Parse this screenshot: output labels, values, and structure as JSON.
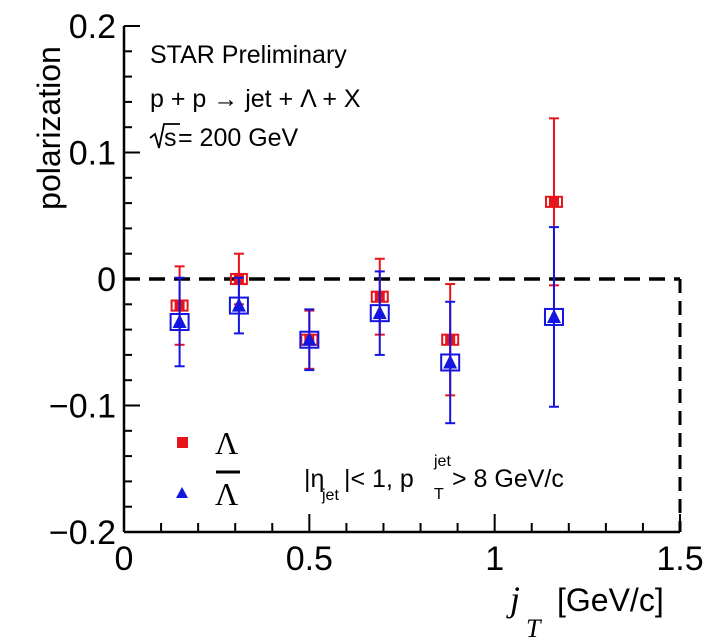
{
  "chart_data": {
    "type": "scatter",
    "xlabel_main": "j",
    "xlabel_sub": "T",
    "xlabel_unit": "[GeV/c]",
    "ylabel": "polarization",
    "xlim": [
      0,
      1.5
    ],
    "ylim": [
      -0.2,
      0.2
    ],
    "x_ticks": [
      "0",
      "0.5",
      "1",
      "1.5"
    ],
    "y_ticks": [
      "0.2",
      "0.1",
      "0",
      "−0.1",
      "−0.2"
    ],
    "reference_line": 0,
    "grid": false,
    "annotations": {
      "experiment": "STAR Preliminary",
      "process": "p + p → jet + Λ + X",
      "energy_sqrt": "s",
      "energy_rest": " = 200 GeV",
      "cuts_eta": "|η",
      "cuts_eta_sub": "jet",
      "cuts_mid": "|< 1, p",
      "cuts_p_sup": "jet",
      "cuts_p_sub": "T",
      "cuts_end": " > 8 GeV/c"
    },
    "legend_position": "bottom-left",
    "series": [
      {
        "name": "Λ",
        "color": "#e8141b",
        "marker": "square",
        "x": [
          0.15,
          0.31,
          0.5,
          0.69,
          0.88,
          1.16
        ],
        "y": [
          -0.021,
          0.0,
          -0.048,
          -0.014,
          -0.048,
          0.061
        ],
        "err": [
          0.031,
          0.02,
          0.023,
          0.03,
          0.044,
          0.066
        ],
        "sys": 0.004
      },
      {
        "name": "Λ",
        "overline": true,
        "color": "#1515e0",
        "marker": "triangle",
        "x": [
          0.15,
          0.31,
          0.5,
          0.69,
          0.88,
          1.16
        ],
        "y": [
          -0.034,
          -0.021,
          -0.048,
          -0.027,
          -0.066,
          -0.03
        ],
        "err": [
          0.035,
          0.022,
          0.024,
          0.033,
          0.048,
          0.071
        ],
        "sys": 0.006
      }
    ]
  }
}
